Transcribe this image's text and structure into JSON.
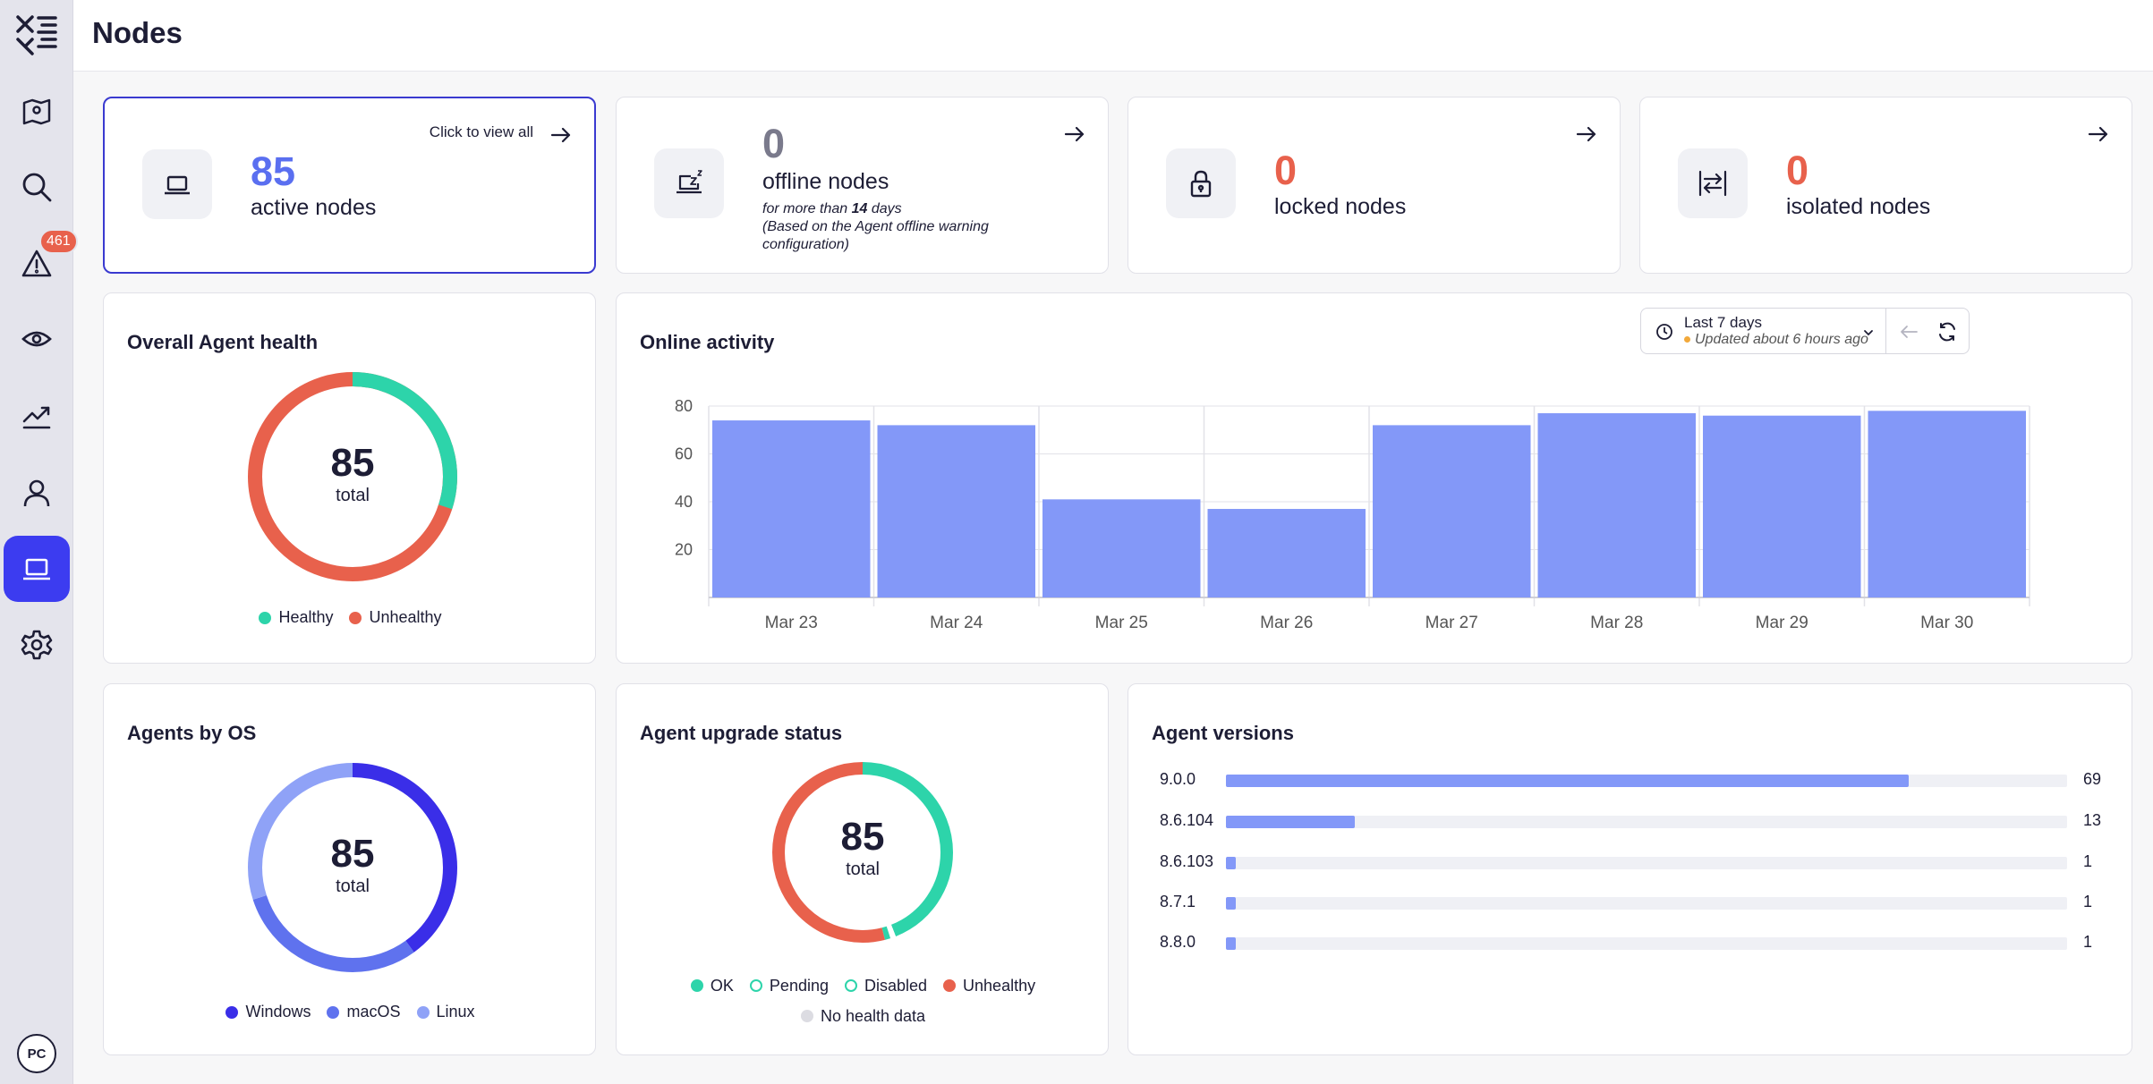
{
  "app": {
    "page_title": "Nodes",
    "avatar_initials": "PC"
  },
  "sidebar": {
    "items": [
      {
        "name": "map-icon"
      },
      {
        "name": "search-icon"
      },
      {
        "name": "alert-icon",
        "badge": "461"
      },
      {
        "name": "eye-icon"
      },
      {
        "name": "trend-icon"
      },
      {
        "name": "user-icon"
      },
      {
        "name": "laptop-icon",
        "active": true
      },
      {
        "name": "gear-icon"
      }
    ]
  },
  "stats": {
    "active": {
      "value": "85",
      "label": "active nodes",
      "cta": "Click to view all",
      "color": "#5a6ff0"
    },
    "offline": {
      "value": "0",
      "label": "offline nodes",
      "note_prefix": "for more than ",
      "note_days": "14",
      "note_suffix": " days",
      "note_line2": "(Based on the Agent offline warning configuration)",
      "color": "#7a7a8c"
    },
    "locked": {
      "value": "0",
      "label": "locked nodes",
      "color": "#e8614c"
    },
    "isolated": {
      "value": "0",
      "label": "isolated nodes",
      "color": "#e8614c"
    }
  },
  "health": {
    "title": "Overall Agent health",
    "total": "85",
    "total_label": "total",
    "legend": [
      {
        "label": "Healthy",
        "color": "#2dd4aa"
      },
      {
        "label": "Unhealthy",
        "color": "#e8614c"
      }
    ],
    "fraction_healthy": 0.3
  },
  "activity": {
    "title": "Online activity",
    "range_label": "Last 7 days",
    "updated_label": "Updated about 6 hours ago"
  },
  "chart_data": {
    "type": "bar",
    "categories": [
      "Mar 23",
      "Mar 24",
      "Mar 25",
      "Mar 26",
      "Mar 27",
      "Mar 28",
      "Mar 29",
      "Mar 30"
    ],
    "values": [
      74,
      72,
      41,
      37,
      72,
      77,
      76,
      78
    ],
    "yticks": [
      20,
      40,
      60,
      80
    ],
    "ylim": [
      0,
      80
    ],
    "color": "#8398f8",
    "grid": true
  },
  "os": {
    "title": "Agents by OS",
    "total": "85",
    "total_label": "total",
    "legend": [
      {
        "label": "Windows",
        "color": "#3a2ee8"
      },
      {
        "label": "macOS",
        "color": "#5f72ee"
      },
      {
        "label": "Linux",
        "color": "#8fa2f7"
      }
    ],
    "fractions": [
      0.4,
      0.3,
      0.3
    ]
  },
  "upgrade": {
    "title": "Agent upgrade status",
    "total": "85",
    "total_label": "total",
    "legend": [
      {
        "label": "OK",
        "color": "#2dd4aa",
        "style": "solid"
      },
      {
        "label": "Pending",
        "color": "#2dd4aa",
        "style": "ring"
      },
      {
        "label": "Disabled",
        "color": "#2dd4aa",
        "style": "ring"
      },
      {
        "label": "Unhealthy",
        "color": "#e8614c",
        "style": "solid"
      },
      {
        "label": "No health data",
        "color": "#dcdce2",
        "style": "solid"
      }
    ],
    "fractions": [
      0.44,
      0.01,
      0.01,
      0.54
    ]
  },
  "versions": {
    "title": "Agent versions",
    "max": 85,
    "rows": [
      {
        "version": "9.0.0",
        "count": 69
      },
      {
        "version": "8.6.104",
        "count": 13
      },
      {
        "version": "8.6.103",
        "count": 1
      },
      {
        "version": "8.7.1",
        "count": 1
      },
      {
        "version": "8.8.0",
        "count": 1
      }
    ]
  }
}
